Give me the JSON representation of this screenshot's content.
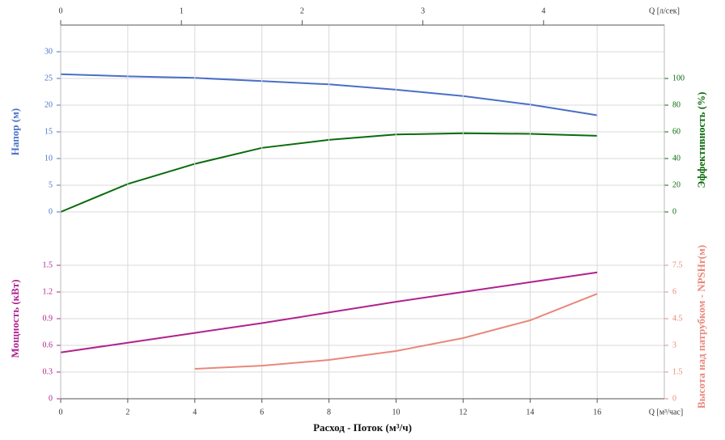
{
  "chart_data": [
    {
      "type": "line",
      "x": [
        0,
        2,
        4,
        6,
        8,
        10,
        12,
        14,
        16
      ],
      "xlim": [
        0,
        18
      ],
      "x2label": "Q [л/сек]",
      "x2lim": [
        0,
        5
      ],
      "x2ticks": [
        0,
        1,
        2,
        3,
        4
      ],
      "ylabel": "Напор (м)",
      "ylabel_color": "#4a6fc7",
      "ylim": [
        -5,
        35
      ],
      "yticks": [
        0,
        5,
        10,
        15,
        20,
        25,
        30
      ],
      "y2label": "Эффективность (%)",
      "y2label_color": "#0b6b0b",
      "y2lim": [
        -20,
        140
      ],
      "y2ticks": [
        0,
        20,
        40,
        60,
        80,
        100
      ],
      "grid": true,
      "series": [
        {
          "color": "#4a6fc7",
          "values": [
            25.8,
            25.4,
            25.1,
            24.5,
            23.9,
            22.9,
            21.7,
            20.1,
            18.1
          ]
        },
        {
          "color": "#0b6b0b",
          "axis": "y2",
          "values": [
            0,
            21,
            36,
            48,
            54,
            58,
            59,
            58.5,
            57
          ]
        }
      ]
    },
    {
      "type": "line",
      "x": [
        0,
        2,
        4,
        6,
        8,
        10,
        12,
        14,
        16
      ],
      "xlabel": "Расход - Поток (м³/ч)",
      "xunit": "Q [м³/час]",
      "xlim": [
        0,
        18
      ],
      "xticks": [
        0,
        2,
        4,
        6,
        8,
        10,
        12,
        14,
        16
      ],
      "ylabel": "Мощность (кВт)",
      "ylabel_color": "#b0228e",
      "ylim": [
        0,
        1.8
      ],
      "yticks": [
        0,
        0.3,
        0.6,
        0.9,
        1.2,
        1.5
      ],
      "y2label": "Высота над патрубком - NPSHr(м)",
      "y2label_color": "#e8887a",
      "y2lim": [
        0,
        9
      ],
      "y2ticks": [
        0,
        1.5,
        3,
        4.5,
        6,
        7.5
      ],
      "grid": true,
      "series": [
        {
          "color": "#b0228e",
          "values": [
            0.52,
            0.63,
            0.74,
            0.85,
            0.97,
            1.09,
            1.2,
            1.31,
            1.42
          ]
        },
        {
          "color": "#e8887a",
          "axis": "y2",
          "values": [
            null,
            null,
            1.68,
            1.86,
            2.18,
            2.68,
            3.41,
            4.41,
            5.9
          ]
        }
      ]
    }
  ]
}
